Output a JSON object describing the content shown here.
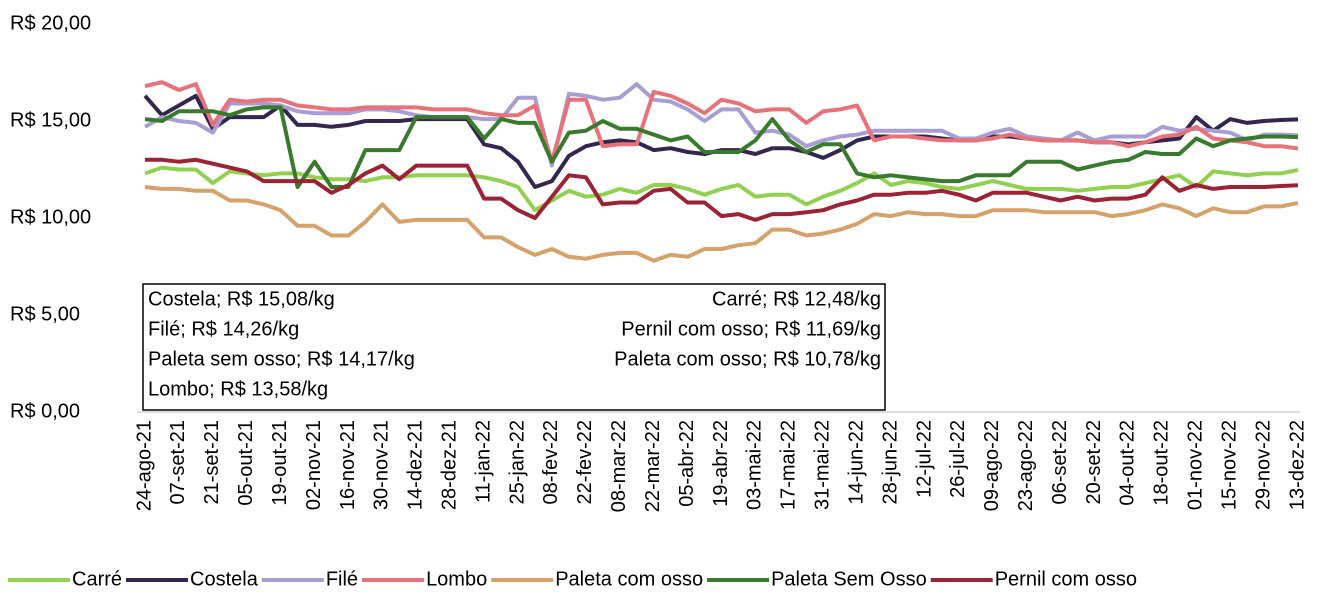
{
  "chart_data": {
    "type": "line",
    "categories": [
      "24-ago-21",
      null,
      "07-set-21",
      null,
      "21-set-21",
      null,
      "05-out-21",
      null,
      "19-out-21",
      null,
      "02-nov-21",
      null,
      "16-nov-21",
      null,
      "30-nov-21",
      null,
      "14-dez-21",
      null,
      "28-dez-21",
      null,
      "11-jan-22",
      null,
      "25-jan-22",
      null,
      "08-fev-22",
      null,
      "22-fev-22",
      null,
      "08-mar-22",
      null,
      "22-mar-22",
      null,
      "05-abr-22",
      null,
      "19-abr-22",
      null,
      "03-mai-22",
      null,
      "17-mai-22",
      null,
      "31-mai-22",
      null,
      "14-jun-22",
      null,
      "28-jun-22",
      null,
      "12-jul-22",
      null,
      "26-jul-22",
      null,
      "09-ago-22",
      null,
      "23-ago-22",
      null,
      "06-set-22",
      null,
      "20-set-22",
      null,
      "04-out-22",
      null,
      "18-out-22",
      null,
      "01-nov-22",
      null,
      "15-nov-22",
      null,
      "29-nov-22",
      null,
      "13-dez-22"
    ],
    "ylim": [
      0,
      20
    ],
    "yticks": [
      {
        "value": 0,
        "label": "R$ 0,00"
      },
      {
        "value": 5,
        "label": "R$ 5,00"
      },
      {
        "value": 10,
        "label": "R$ 10,00"
      },
      {
        "value": 15,
        "label": "R$ 15,00"
      },
      {
        "value": 20,
        "label": "R$ 20,00"
      }
    ],
    "grid": false,
    "legend": "bottom",
    "annotation_left": [
      "Costela; R$ 15,08/kg",
      "Filé; R$ 14,26/kg",
      "Paleta sem osso; R$ 14,17/kg",
      "Lombo; R$ 13,58/kg"
    ],
    "annotation_right": [
      "Carré; R$ 12,48/kg",
      "Pernil com osso; R$ 11,69/kg",
      "Paleta com osso; R$ 10,78/kg"
    ],
    "series": [
      {
        "name": "Carré",
        "color": "#92d050",
        "values": [
          12.3,
          12.6,
          12.5,
          12.5,
          11.8,
          12.4,
          12.3,
          12.2,
          12.3,
          12.3,
          12.1,
          12.0,
          12.0,
          11.9,
          12.1,
          12.1,
          12.2,
          12.2,
          12.2,
          12.2,
          12.1,
          11.9,
          11.6,
          10.4,
          10.9,
          11.4,
          11.1,
          11.2,
          11.5,
          11.3,
          11.7,
          11.7,
          11.5,
          11.2,
          11.5,
          11.7,
          11.1,
          11.2,
          11.2,
          10.7,
          11.1,
          11.4,
          11.8,
          12.3,
          11.7,
          11.9,
          11.8,
          11.6,
          11.5,
          11.7,
          11.9,
          11.7,
          11.5,
          11.5,
          11.5,
          11.4,
          11.5,
          11.6,
          11.6,
          11.8,
          12.0,
          12.2,
          11.6,
          12.4,
          12.3,
          12.2,
          12.3,
          12.3,
          12.48
        ]
      },
      {
        "name": "Costela",
        "color": "#33264f",
        "values": [
          16.3,
          15.3,
          15.8,
          16.3,
          14.6,
          15.2,
          15.2,
          15.2,
          15.8,
          14.8,
          14.8,
          14.7,
          14.8,
          15.0,
          15.0,
          15.0,
          15.1,
          15.1,
          15.1,
          15.1,
          13.8,
          13.6,
          12.9,
          11.6,
          11.9,
          13.2,
          13.7,
          13.9,
          14.0,
          13.9,
          13.5,
          13.6,
          13.4,
          13.3,
          13.5,
          13.5,
          13.3,
          13.6,
          13.6,
          13.4,
          13.1,
          13.5,
          14.0,
          14.2,
          14.2,
          14.2,
          14.2,
          14.1,
          14.0,
          14.0,
          14.2,
          14.2,
          14.1,
          14.0,
          14.0,
          14.0,
          13.9,
          13.9,
          13.8,
          13.9,
          14.0,
          14.1,
          15.2,
          14.5,
          15.1,
          14.9,
          15.0,
          15.05,
          15.08
        ]
      },
      {
        "name": "Filé",
        "color": "#a99ed3",
        "values": [
          14.7,
          15.2,
          15.0,
          14.9,
          14.4,
          15.9,
          15.9,
          15.9,
          15.8,
          15.5,
          15.4,
          15.4,
          15.4,
          15.6,
          15.6,
          15.5,
          15.3,
          15.2,
          15.2,
          15.2,
          15.1,
          15.1,
          16.2,
          16.2,
          12.7,
          16.4,
          16.3,
          16.1,
          16.2,
          16.9,
          16.1,
          16.0,
          15.6,
          15.0,
          15.6,
          15.6,
          14.4,
          14.5,
          14.3,
          13.7,
          14.0,
          14.2,
          14.3,
          14.5,
          14.5,
          14.5,
          14.5,
          14.5,
          14.1,
          14.1,
          14.4,
          14.6,
          14.2,
          14.1,
          14.0,
          14.4,
          14.0,
          14.2,
          14.2,
          14.2,
          14.7,
          14.5,
          14.6,
          14.5,
          14.4,
          14.0,
          14.3,
          14.3,
          14.26
        ]
      },
      {
        "name": "Lombo",
        "color": "#e8727a",
        "values": [
          16.8,
          17.0,
          16.6,
          16.9,
          14.8,
          16.1,
          16.0,
          16.1,
          16.1,
          15.8,
          15.7,
          15.6,
          15.6,
          15.7,
          15.7,
          15.7,
          15.7,
          15.6,
          15.6,
          15.6,
          15.4,
          15.3,
          15.3,
          15.8,
          12.9,
          16.1,
          16.1,
          13.7,
          13.8,
          13.8,
          16.5,
          16.3,
          15.9,
          15.4,
          16.1,
          15.9,
          15.5,
          15.6,
          15.6,
          14.9,
          15.5,
          15.6,
          15.8,
          14.0,
          14.2,
          14.2,
          14.1,
          14.0,
          14.0,
          14.0,
          14.1,
          14.3,
          14.1,
          14.0,
          14.0,
          14.0,
          13.9,
          13.9,
          13.7,
          13.9,
          14.2,
          14.3,
          14.7,
          14.1,
          14.0,
          13.9,
          13.7,
          13.7,
          13.58
        ]
      },
      {
        "name": "Paleta com osso",
        "color": "#d4a26a",
        "values": [
          11.6,
          11.5,
          11.5,
          11.4,
          11.4,
          10.9,
          10.9,
          10.7,
          10.4,
          9.6,
          9.6,
          9.1,
          9.1,
          9.8,
          10.7,
          9.8,
          9.9,
          9.9,
          9.9,
          9.9,
          9.0,
          9.0,
          8.5,
          8.1,
          8.4,
          8.0,
          7.9,
          8.1,
          8.2,
          8.2,
          7.8,
          8.1,
          8.0,
          8.4,
          8.4,
          8.6,
          8.7,
          9.4,
          9.4,
          9.1,
          9.2,
          9.4,
          9.7,
          10.2,
          10.1,
          10.3,
          10.2,
          10.2,
          10.1,
          10.1,
          10.4,
          10.4,
          10.4,
          10.3,
          10.3,
          10.3,
          10.3,
          10.1,
          10.2,
          10.4,
          10.7,
          10.5,
          10.1,
          10.5,
          10.3,
          10.3,
          10.6,
          10.6,
          10.78
        ]
      },
      {
        "name": "Paleta Sem Osso",
        "color": "#3a7a2e",
        "values": [
          15.1,
          15.0,
          15.5,
          15.5,
          15.5,
          15.3,
          15.6,
          15.7,
          15.7,
          11.6,
          12.9,
          11.6,
          11.6,
          13.5,
          13.5,
          13.5,
          15.2,
          15.2,
          15.2,
          15.2,
          14.1,
          15.1,
          14.9,
          14.9,
          12.9,
          14.4,
          14.5,
          15.0,
          14.6,
          14.6,
          14.3,
          14.0,
          14.2,
          13.4,
          13.4,
          13.4,
          14.0,
          15.1,
          14.0,
          13.4,
          13.8,
          13.8,
          12.3,
          12.1,
          12.2,
          12.1,
          12.0,
          11.9,
          11.9,
          12.2,
          12.2,
          12.2,
          12.9,
          12.9,
          12.9,
          12.5,
          12.7,
          12.9,
          13.0,
          13.4,
          13.3,
          13.3,
          14.1,
          13.7,
          14.0,
          14.1,
          14.2,
          14.2,
          14.17
        ]
      },
      {
        "name": "Pernil com osso",
        "color": "#9b2335",
        "values": [
          13.0,
          13.0,
          12.9,
          13.0,
          12.8,
          12.6,
          12.4,
          11.9,
          11.9,
          11.9,
          11.9,
          11.3,
          11.7,
          12.3,
          12.7,
          12.0,
          12.7,
          12.7,
          12.7,
          12.7,
          11.0,
          11.0,
          10.4,
          10.0,
          11.1,
          12.2,
          12.1,
          10.7,
          10.8,
          10.8,
          11.4,
          11.5,
          10.8,
          10.8,
          10.1,
          10.2,
          9.9,
          10.2,
          10.2,
          10.3,
          10.4,
          10.7,
          10.9,
          11.2,
          11.2,
          11.3,
          11.3,
          11.4,
          11.2,
          10.9,
          11.3,
          11.3,
          11.3,
          11.1,
          10.9,
          11.1,
          10.9,
          11.0,
          11.0,
          11.2,
          12.1,
          11.4,
          11.7,
          11.5,
          11.6,
          11.6,
          11.6,
          11.65,
          11.69
        ]
      }
    ]
  }
}
